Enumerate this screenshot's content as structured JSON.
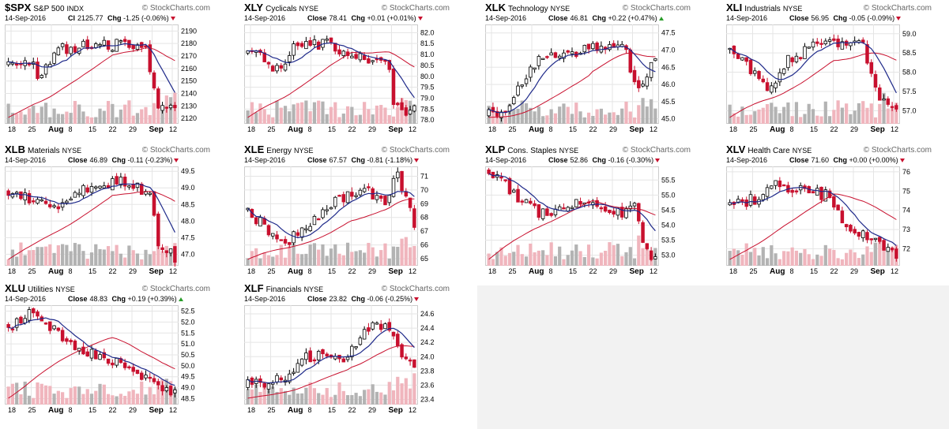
{
  "layout": {
    "panel_width": 250,
    "panel_height": 165,
    "cols": [
      6,
      309,
      614,
      919
    ],
    "rows": [
      4,
      184,
      360
    ]
  },
  "colors": {
    "up_body": "#ffffff",
    "down_body": "#c8102e",
    "candle_outline": "#000000",
    "ma_fast": "#1f2a8a",
    "ma_slow": "#c8102e",
    "vol_up": "#b3b3b3",
    "vol_down": "#f0b5bd",
    "grid": "#e5e5e5",
    "watermark": "#666666"
  },
  "common": {
    "watermark": "© StockCharts.com",
    "date": "14-Sep-2016",
    "x_labels": [
      "18",
      "25",
      "Aug",
      "8",
      "15",
      "22",
      "29",
      "Sep",
      "12"
    ]
  },
  "chart_data": [
    {
      "symbol": "$SPX",
      "name": "S&P 500",
      "exchange": "INDX",
      "close_label": "Cl",
      "close": "2125.77",
      "chg": "-1.25 (-0.06%)",
      "dir": "down",
      "yticks": [
        "2190",
        "2180",
        "2170",
        "2160",
        "2150",
        "2140",
        "2130",
        "2120"
      ],
      "ymin": 2117,
      "ymax": 2194,
      "start": 2164,
      "trend": [
        [
          0,
          2162
        ],
        [
          0.15,
          2164
        ],
        [
          0.18,
          2152
        ],
        [
          0.3,
          2175
        ],
        [
          0.5,
          2178
        ],
        [
          0.75,
          2180
        ],
        [
          0.82,
          2178
        ],
        [
          0.9,
          2126
        ],
        [
          1.0,
          2126
        ]
      ]
    },
    {
      "symbol": "XLY",
      "name": "Cyclicals",
      "exchange": "NYSE",
      "close_label": "Close",
      "close": "78.41",
      "chg": "+0.01 (+0.01%)",
      "dir": "down",
      "yticks": [
        "82.0",
        "81.5",
        "81.0",
        "80.5",
        "80.0",
        "79.5",
        "79.0",
        "78.5",
        "78.0"
      ],
      "ymin": 77.9,
      "ymax": 82.3,
      "start": 81.1,
      "trend": [
        [
          0,
          81.2
        ],
        [
          0.2,
          80.2
        ],
        [
          0.28,
          81.3
        ],
        [
          0.45,
          81.5
        ],
        [
          0.75,
          80.8
        ],
        [
          0.84,
          80.9
        ],
        [
          0.88,
          78.5
        ],
        [
          1.0,
          78.4
        ]
      ]
    },
    {
      "symbol": "XLK",
      "name": "Technology",
      "exchange": "NYSE",
      "close_label": "Close",
      "close": "46.81",
      "chg": "+0.22 (+0.47%)",
      "dir": "up",
      "yticks": [
        "47.5",
        "47.0",
        "46.5",
        "46.0",
        "45.5",
        "45.0"
      ],
      "ymin": 44.9,
      "ymax": 47.7,
      "start": 45.1,
      "trend": [
        [
          0,
          45.1
        ],
        [
          0.1,
          45.3
        ],
        [
          0.3,
          46.8
        ],
        [
          0.55,
          47.0
        ],
        [
          0.82,
          47.3
        ],
        [
          0.85,
          46.3
        ],
        [
          0.92,
          45.9
        ],
        [
          1.0,
          46.81
        ]
      ]
    },
    {
      "symbol": "XLI",
      "name": "Industrials",
      "exchange": "NYSE",
      "close_label": "Close",
      "close": "56.95",
      "chg": "-0.05 (-0.09%)",
      "dir": "down",
      "yticks": [
        "59.0",
        "58.5",
        "58.0",
        "57.5",
        "57.0"
      ],
      "ymin": 56.7,
      "ymax": 59.2,
      "start": 58.6,
      "trend": [
        [
          0,
          58.6
        ],
        [
          0.25,
          57.5
        ],
        [
          0.35,
          58.3
        ],
        [
          0.55,
          58.8
        ],
        [
          0.8,
          58.7
        ],
        [
          0.88,
          57.4
        ],
        [
          1.0,
          56.95
        ]
      ]
    },
    {
      "symbol": "XLB",
      "name": "Materials",
      "exchange": "NYSE",
      "close_label": "Close",
      "close": "46.89",
      "chg": "-0.11 (-0.23%)",
      "dir": "down",
      "yticks": [
        "49.5",
        "49.0",
        "48.5",
        "48.0",
        "47.5",
        "47.0"
      ],
      "ymin": 46.7,
      "ymax": 49.6,
      "start": 48.9,
      "trend": [
        [
          0,
          48.9
        ],
        [
          0.3,
          48.3
        ],
        [
          0.45,
          49.0
        ],
        [
          0.7,
          49.2
        ],
        [
          0.85,
          48.8
        ],
        [
          0.9,
          47.3
        ],
        [
          1.0,
          46.9
        ]
      ]
    },
    {
      "symbol": "XLE",
      "name": "Energy",
      "exchange": "NYSE",
      "close_label": "Close",
      "close": "67.57",
      "chg": "-0.81 (-1.18%)",
      "dir": "down",
      "yticks": [
        "71",
        "70",
        "69",
        "68",
        "67",
        "66",
        "65"
      ],
      "ymin": 64.6,
      "ymax": 71.6,
      "start": 68.5,
      "trend": [
        [
          0,
          68.5
        ],
        [
          0.22,
          66.0
        ],
        [
          0.3,
          66.8
        ],
        [
          0.5,
          69.0
        ],
        [
          0.7,
          70.0
        ],
        [
          0.82,
          69.0
        ],
        [
          0.9,
          71.2
        ],
        [
          1.0,
          67.6
        ]
      ]
    },
    {
      "symbol": "XLP",
      "name": "Cons. Staples",
      "exchange": "NYSE",
      "close_label": "Close",
      "close": "52.86",
      "chg": "-0.16 (-0.30%)",
      "dir": "down",
      "yticks": [
        "55.5",
        "55.0",
        "54.5",
        "54.0",
        "53.5",
        "53.0"
      ],
      "ymin": 52.7,
      "ymax": 55.9,
      "start": 55.8,
      "trend": [
        [
          0,
          55.8
        ],
        [
          0.2,
          54.8
        ],
        [
          0.3,
          54.4
        ],
        [
          0.6,
          54.8
        ],
        [
          0.8,
          54.4
        ],
        [
          0.88,
          54.8
        ],
        [
          0.92,
          53.3
        ],
        [
          1.0,
          52.9
        ]
      ]
    },
    {
      "symbol": "XLV",
      "name": "Health Care",
      "exchange": "NYSE",
      "close_label": "Close",
      "close": "71.60",
      "chg": "+0.00 (+0.00%)",
      "dir": "down",
      "yticks": [
        "76",
        "75",
        "74",
        "73",
        "72"
      ],
      "ymin": 71.2,
      "ymax": 76.2,
      "start": 74.2,
      "trend": [
        [
          0,
          74.2
        ],
        [
          0.15,
          74.6
        ],
        [
          0.28,
          75.4
        ],
        [
          0.5,
          74.9
        ],
        [
          0.6,
          74.8
        ],
        [
          0.7,
          73.0
        ],
        [
          0.8,
          72.7
        ],
        [
          1.0,
          71.6
        ]
      ]
    },
    {
      "symbol": "XLU",
      "name": "Utilities",
      "exchange": "NYSE",
      "close_label": "Close",
      "close": "48.83",
      "chg": "+0.19 (+0.39%)",
      "dir": "up",
      "yticks": [
        "52.5",
        "52.0",
        "51.5",
        "51.0",
        "50.5",
        "50.0",
        "49.5",
        "49.0",
        "48.5"
      ],
      "ymin": 48.3,
      "ymax": 52.7,
      "start": 51.8,
      "trend": [
        [
          0,
          51.8
        ],
        [
          0.12,
          52.4
        ],
        [
          0.25,
          51.8
        ],
        [
          0.35,
          51.0
        ],
        [
          0.5,
          50.6
        ],
        [
          0.7,
          50.1
        ],
        [
          0.85,
          49.2
        ],
        [
          1.0,
          48.83
        ]
      ]
    },
    {
      "symbol": "XLF",
      "name": "Financials",
      "exchange": "NYSE",
      "close_label": "Close",
      "close": "23.82",
      "chg": "-0.06 (-0.25%)",
      "dir": "down",
      "yticks": [
        "24.6",
        "24.4",
        "24.2",
        "24.0",
        "23.8",
        "23.6",
        "23.4"
      ],
      "ymin": 23.35,
      "ymax": 24.7,
      "start": 23.6,
      "trend": [
        [
          0,
          23.6
        ],
        [
          0.2,
          23.7
        ],
        [
          0.35,
          24.0
        ],
        [
          0.6,
          24.0
        ],
        [
          0.75,
          24.5
        ],
        [
          0.85,
          24.4
        ],
        [
          0.92,
          24.0
        ],
        [
          1.0,
          23.8
        ]
      ]
    }
  ]
}
